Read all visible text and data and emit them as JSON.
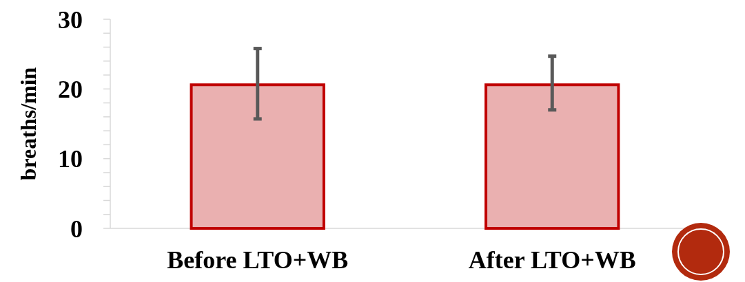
{
  "chart_data": {
    "type": "bar",
    "ylabel": "breaths/min",
    "categories": [
      "Before LTO+WB",
      "After LTO+WB"
    ],
    "values": [
      20.6,
      20.6
    ],
    "color": "#eab0b0",
    "errors": [
      [
        15.7,
        25.8
      ],
      [
        17.0,
        24.7
      ]
    ],
    "ylim": [
      0,
      30
    ],
    "yticks": [
      0,
      {
        "value": 2,
        "label": null
      },
      {
        "value": 4,
        "label": null
      },
      {
        "value": 6,
        "label": null
      },
      {
        "value": 8,
        "label": null
      },
      10,
      {
        "value": 12,
        "label": null
      },
      {
        "value": 14,
        "label": null
      },
      {
        "value": 16,
        "label": null
      },
      {
        "value": 18,
        "label": null
      },
      20,
      {
        "value": 22,
        "label": null
      },
      {
        "value": 24,
        "label": null
      },
      {
        "value": 26,
        "label": null
      },
      {
        "value": 28,
        "label": null
      },
      30
    ],
    "grid": false
  }
}
